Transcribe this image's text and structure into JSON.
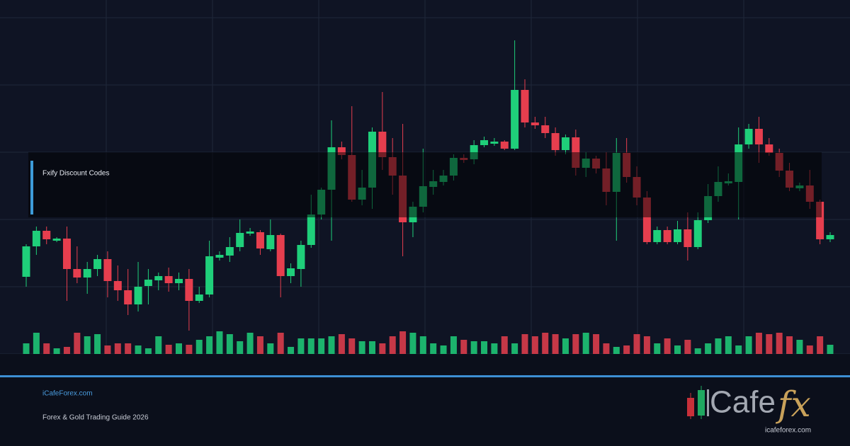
{
  "chart_data": {
    "type": "candlestick",
    "ohlc": [
      [
        109,
        155,
        95,
        152
      ],
      [
        152,
        180,
        140,
        174
      ],
      [
        174,
        180,
        155,
        162
      ],
      [
        160,
        165,
        158,
        163
      ],
      [
        163,
        180,
        75,
        120
      ],
      [
        120,
        152,
        100,
        108
      ],
      [
        108,
        130,
        85,
        120
      ],
      [
        120,
        140,
        110,
        134
      ],
      [
        134,
        145,
        80,
        103
      ],
      [
        103,
        125,
        75,
        90
      ],
      [
        90,
        120,
        55,
        70
      ],
      [
        70,
        130,
        60,
        95
      ],
      [
        96,
        120,
        70,
        105
      ],
      [
        104,
        115,
        90,
        110
      ],
      [
        110,
        122,
        88,
        100
      ],
      [
        100,
        115,
        90,
        106
      ],
      [
        106,
        120,
        33,
        75
      ],
      [
        75,
        95,
        72,
        84
      ],
      [
        84,
        160,
        80,
        138
      ],
      [
        136,
        145,
        132,
        140
      ],
      [
        139,
        165,
        130,
        151
      ],
      [
        151,
        190,
        145,
        171
      ],
      [
        170,
        178,
        167,
        173
      ],
      [
        172,
        175,
        140,
        149
      ],
      [
        148,
        190,
        145,
        168
      ],
      [
        168,
        170,
        80,
        110
      ],
      [
        110,
        128,
        100,
        121
      ],
      [
        120,
        160,
        95,
        154
      ],
      [
        154,
        225,
        150,
        197
      ],
      [
        197,
        235,
        190,
        232
      ],
      [
        232,
        330,
        160,
        292
      ],
      [
        292,
        300,
        275,
        281
      ],
      [
        281,
        350,
        215,
        218
      ],
      [
        218,
        260,
        210,
        235
      ],
      [
        235,
        320,
        205,
        314
      ],
      [
        314,
        370,
        260,
        278
      ],
      [
        278,
        305,
        225,
        252
      ],
      [
        252,
        325,
        138,
        186
      ],
      [
        186,
        215,
        165,
        208
      ],
      [
        208,
        290,
        200,
        237
      ],
      [
        236,
        260,
        225,
        244
      ],
      [
        243,
        260,
        238,
        252
      ],
      [
        252,
        282,
        245,
        277
      ],
      [
        277,
        282,
        270,
        274
      ],
      [
        275,
        302,
        268,
        295
      ],
      [
        295,
        307,
        292,
        302
      ],
      [
        297,
        305,
        294,
        300
      ],
      [
        300,
        302,
        288,
        290
      ],
      [
        290,
        443,
        288,
        373
      ],
      [
        373,
        388,
        320,
        327
      ],
      [
        327,
        335,
        318,
        323
      ],
      [
        323,
        335,
        305,
        312
      ],
      [
        312,
        320,
        280,
        288
      ],
      [
        288,
        310,
        282,
        306
      ],
      [
        306,
        317,
        252,
        263
      ],
      [
        263,
        285,
        250,
        276
      ],
      [
        276,
        280,
        255,
        262
      ],
      [
        262,
        285,
        210,
        229
      ],
      [
        229,
        305,
        160,
        284
      ],
      [
        284,
        305,
        242,
        250
      ],
      [
        250,
        265,
        210,
        221
      ],
      [
        221,
        230,
        155,
        158
      ],
      [
        158,
        180,
        155,
        175
      ],
      [
        175,
        180,
        155,
        158
      ],
      [
        158,
        188,
        155,
        176
      ],
      [
        176,
        200,
        132,
        151
      ],
      [
        151,
        200,
        148,
        189
      ],
      [
        189,
        240,
        185,
        223
      ],
      [
        223,
        265,
        215,
        243
      ],
      [
        241,
        255,
        238,
        244
      ],
      [
        243,
        320,
        190,
        296
      ],
      [
        296,
        325,
        290,
        318
      ],
      [
        318,
        335,
        270,
        296
      ],
      [
        296,
        305,
        280,
        284
      ],
      [
        284,
        290,
        250,
        259
      ],
      [
        259,
        270,
        230,
        235
      ],
      [
        234,
        242,
        230,
        238
      ],
      [
        238,
        260,
        205,
        215
      ],
      [
        215,
        218,
        155,
        162
      ],
      [
        162,
        172,
        158,
        168
      ]
    ],
    "volume": [
      15,
      30,
      15,
      8,
      10,
      30,
      25,
      28,
      12,
      15,
      15,
      12,
      8,
      25,
      13,
      15,
      13,
      20,
      25,
      32,
      28,
      18,
      30,
      25,
      15,
      30,
      10,
      22,
      22,
      22,
      25,
      28,
      22,
      18,
      18,
      15,
      25,
      32,
      30,
      25,
      15,
      12,
      25,
      20,
      18,
      18,
      15,
      25,
      15,
      28,
      25,
      30,
      28,
      22,
      28,
      30,
      28,
      15,
      10,
      12,
      28,
      25,
      15,
      22,
      12,
      20,
      8,
      15,
      22,
      25,
      12,
      25,
      30,
      28,
      30,
      25,
      20,
      12,
      25,
      13
    ],
    "up_color": "#1fcf7a",
    "down_color": "#e63e4e",
    "ylim": [
      0,
      475
    ],
    "yticks": [
      0,
      95,
      190,
      285,
      380,
      475
    ],
    "grid": true
  },
  "banner": {
    "label": "Fxify Discount Codes"
  },
  "footer": {
    "site": "iCafeForex.com",
    "subtitle": "Forex & Gold Trading Guide 2026"
  },
  "logo": {
    "word": "Cafe",
    "fx": "fx",
    "url": "icafeforex.com"
  }
}
